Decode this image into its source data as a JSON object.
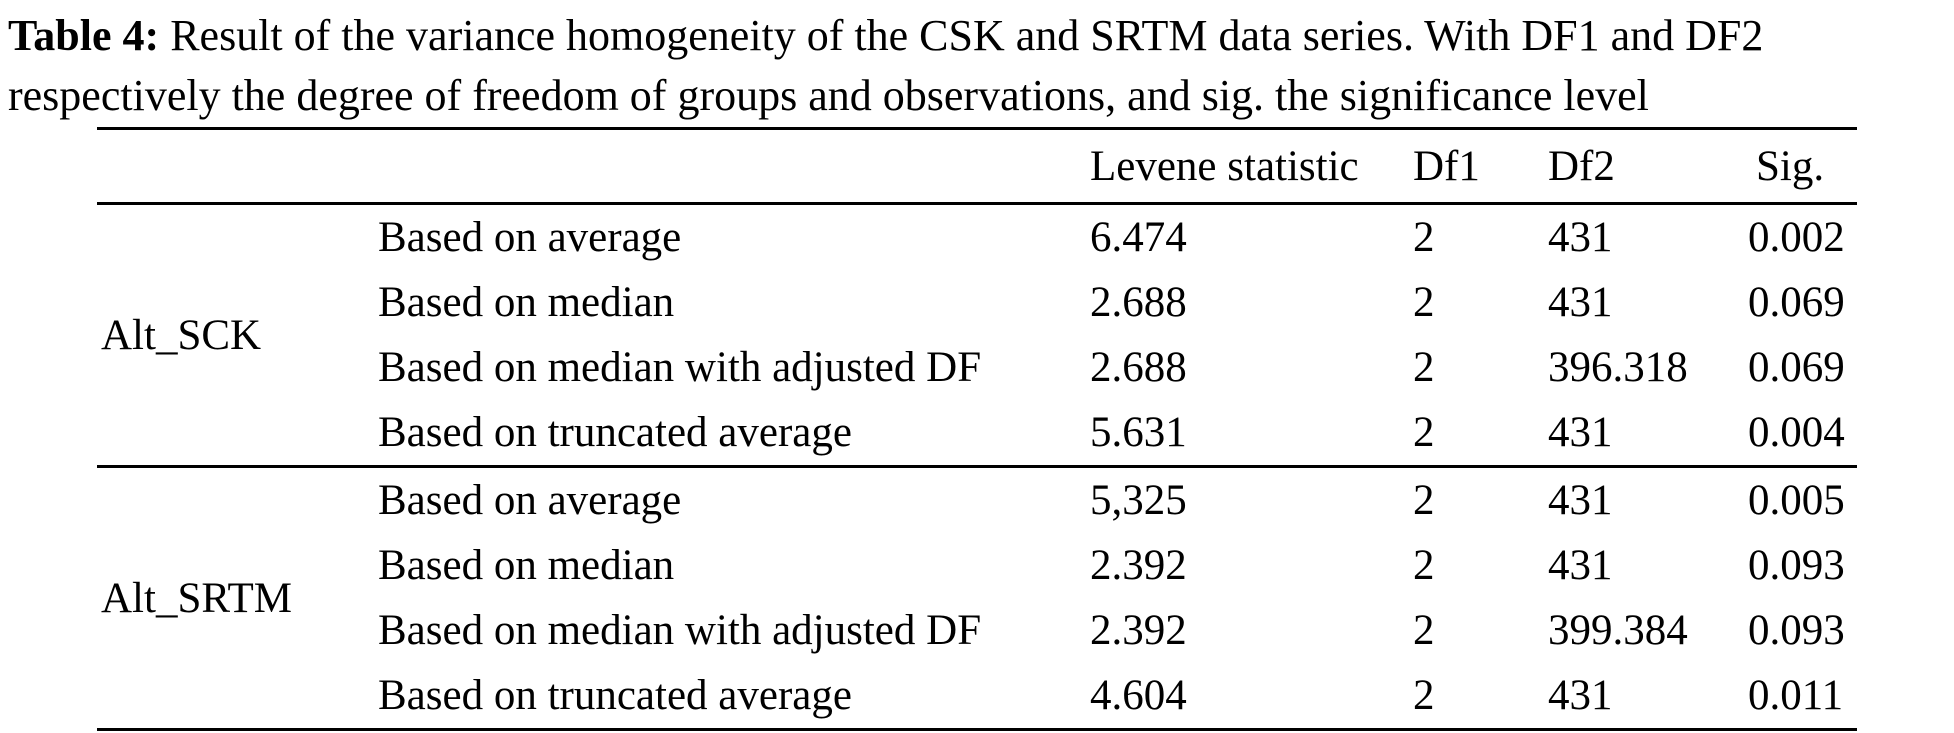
{
  "caption": {
    "label": "Table 4:",
    "line1": " Result of the variance homogeneity of the CSK and SRTM data series. With DF1 and DF2",
    "line2": "respectively the degree of freedom of groups and observations, and sig. the significance level"
  },
  "table": {
    "headers": [
      "Levene statistic",
      "Df1",
      "Df2",
      "Sig."
    ],
    "groups": [
      {
        "name": "Alt_SCK",
        "rows": [
          {
            "method": "Based on average",
            "levene": "6.474",
            "df1": "2",
            "df2": "431",
            "sig": "0.002"
          },
          {
            "method": "Based on median",
            "levene": "2.688",
            "df1": "2",
            "df2": "431",
            "sig": "0.069"
          },
          {
            "method": "Based on median with adjusted DF",
            "levene": "2.688",
            "df1": "2",
            "df2": "396.318",
            "sig": "0.069"
          },
          {
            "method": "Based on truncated average",
            "levene": "5.631",
            "df1": "2",
            "df2": "431",
            "sig": "0.004"
          }
        ]
      },
      {
        "name": "Alt_SRTM",
        "rows": [
          {
            "method": "Based on average",
            "levene": "5,325",
            "df1": "2",
            "df2": "431",
            "sig": "0.005"
          },
          {
            "method": "Based on median",
            "levene": "2.392",
            "df1": "2",
            "df2": "431",
            "sig": "0.093"
          },
          {
            "method": "Based on median with adjusted DF",
            "levene": "2.392",
            "df1": "2",
            "df2": "399.384",
            "sig": "0.093"
          },
          {
            "method": "Based on truncated average",
            "levene": "4.604",
            "df1": "2",
            "df2": "431",
            "sig": "0.011"
          }
        ]
      }
    ]
  }
}
